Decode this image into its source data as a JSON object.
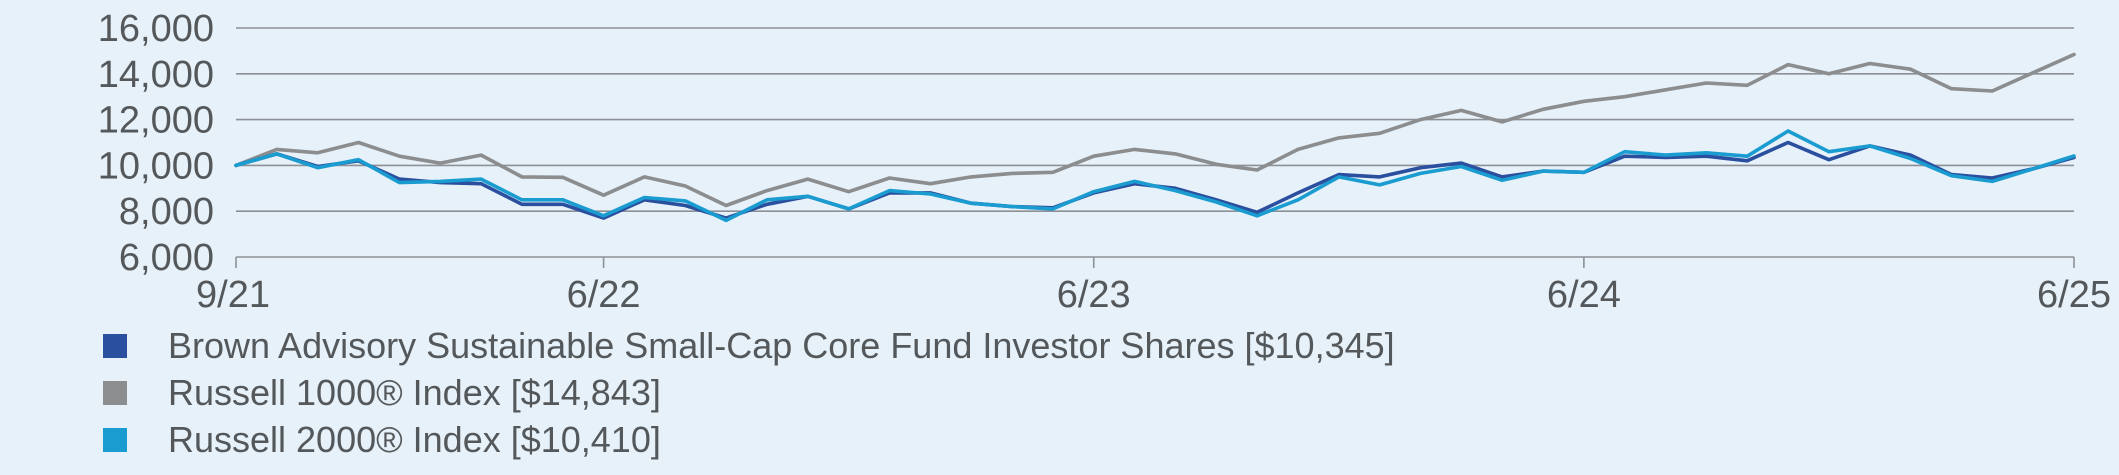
{
  "chart_data": {
    "type": "line",
    "ylim": [
      6000,
      16000
    ],
    "yticks": [
      6000,
      8000,
      10000,
      12000,
      14000,
      16000
    ],
    "ytick_labels": [
      "6,000",
      "8,000",
      "10,000",
      "12,000",
      "14,000",
      "16,000"
    ],
    "xtick_labels": [
      "9/21",
      "6/22",
      "6/23",
      "6/24",
      "6/25"
    ],
    "xtick_index": [
      0,
      9,
      21,
      33,
      45
    ],
    "x": [
      "9/21",
      "10/21",
      "11/21",
      "12/21",
      "1/22",
      "2/22",
      "3/22",
      "4/22",
      "5/22",
      "6/22",
      "7/22",
      "8/22",
      "9/22",
      "10/22",
      "11/22",
      "12/22",
      "1/23",
      "2/23",
      "3/23",
      "4/23",
      "5/23",
      "6/23",
      "7/23",
      "8/23",
      "9/23",
      "10/23",
      "11/23",
      "12/23",
      "1/24",
      "2/24",
      "3/24",
      "4/24",
      "5/24",
      "6/24",
      "7/24",
      "8/24",
      "9/24",
      "10/24",
      "11/24",
      "12/24",
      "1/25",
      "2/25",
      "3/25",
      "4/25",
      "5/25",
      "6/25"
    ],
    "grid": true,
    "series": [
      {
        "name": "Russell 1000® Index [$14,843]",
        "color": "#8b8d8e",
        "values": [
          10000,
          10700,
          10550,
          11000,
          10400,
          10100,
          10450,
          9500,
          9480,
          8700,
          9500,
          9100,
          8250,
          8900,
          9400,
          8850,
          9450,
          9200,
          9500,
          9650,
          9700,
          10400,
          10700,
          10500,
          10050,
          9800,
          10700,
          11200,
          11400,
          12000,
          12400,
          11900,
          12450,
          12800,
          13000,
          13300,
          13600,
          13500,
          14400,
          14000,
          14450,
          14200,
          13350,
          13250,
          14050,
          14843
        ]
      },
      {
        "name": "Brown Advisory Sustainable Small-Cap Core Fund Investor Shares [$10,345]",
        "color": "#2a4f9e",
        "values": [
          10000,
          10500,
          9950,
          10200,
          9400,
          9250,
          9200,
          8300,
          8300,
          7700,
          8500,
          8250,
          7700,
          8300,
          8650,
          8100,
          8800,
          8800,
          8350,
          8200,
          8150,
          8800,
          9200,
          9000,
          8500,
          7950,
          8800,
          9600,
          9500,
          9900,
          10100,
          9500,
          9750,
          9700,
          10400,
          10350,
          10400,
          10200,
          11000,
          10250,
          10850,
          10450,
          9600,
          9450,
          9850,
          10345
        ]
      },
      {
        "name": "Russell 2000® Index [$10,410]",
        "color": "#1a9cd0",
        "values": [
          10000,
          10500,
          9900,
          10250,
          9250,
          9300,
          9400,
          8500,
          8500,
          7800,
          8600,
          8450,
          7600,
          8500,
          8650,
          8100,
          8900,
          8750,
          8350,
          8200,
          8100,
          8850,
          9300,
          8900,
          8400,
          7800,
          8500,
          9500,
          9150,
          9650,
          9950,
          9350,
          9750,
          9700,
          10600,
          10450,
          10550,
          10400,
          11500,
          10600,
          10850,
          10300,
          9550,
          9300,
          9850,
          10410
        ]
      }
    ],
    "legend_order": [
      1,
      0,
      2
    ]
  }
}
